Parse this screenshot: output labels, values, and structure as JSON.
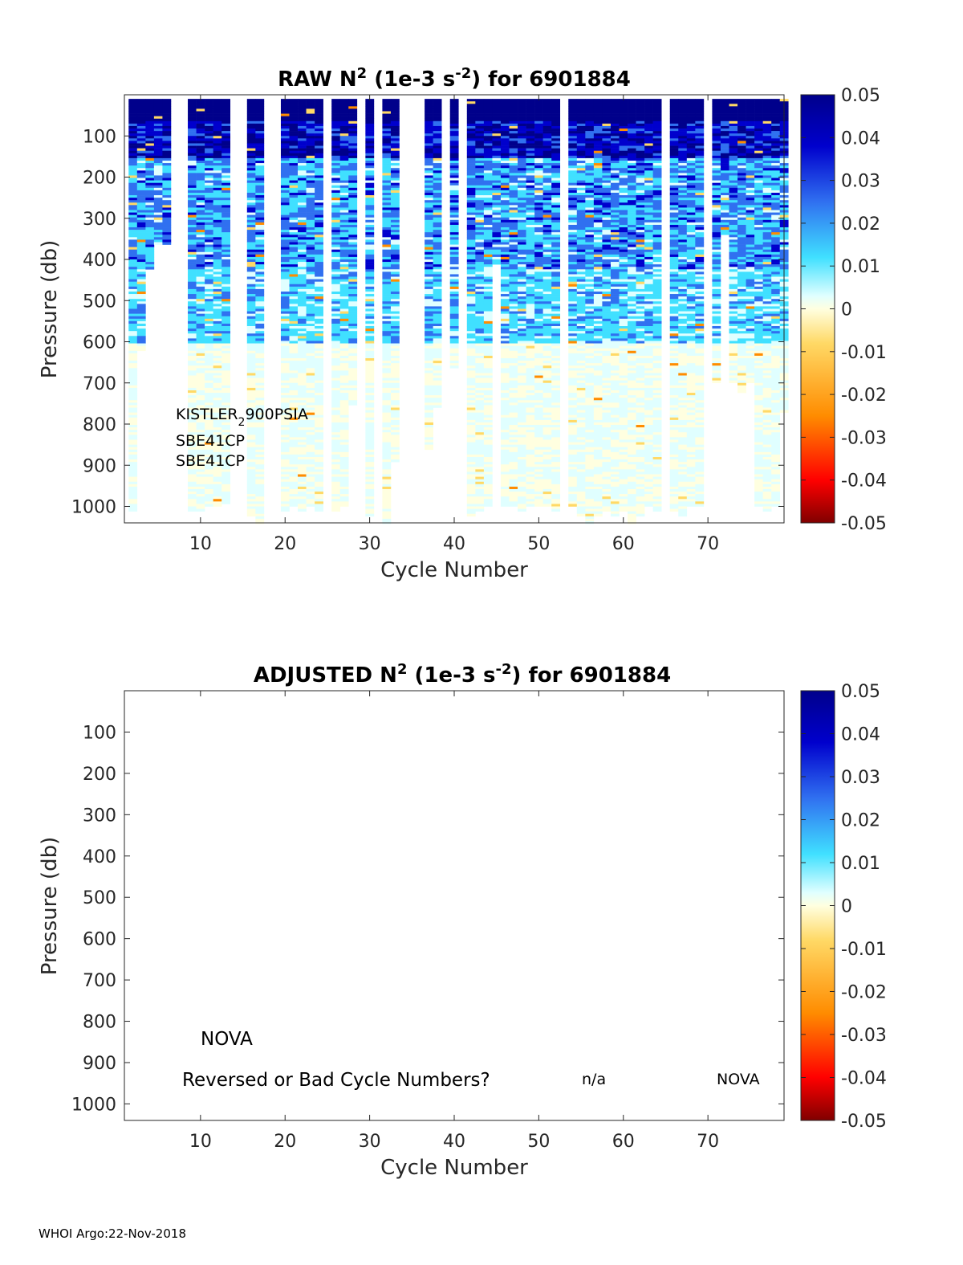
{
  "footer": "WHOI Argo:22-Nov-2018",
  "colors": {
    "colormap": [
      "#800000",
      "#ff0000",
      "#ff8c00",
      "#ffd966",
      "#ffffe0",
      "#e0ffff",
      "#40e0ff",
      "#3070f0",
      "#0000cd",
      "#00008b"
    ],
    "missing": "#ffffff"
  },
  "chart_data": [
    {
      "type": "heatmap",
      "title_pre": "RAW N",
      "title_sup1": "2",
      "title_mid": " (1e-3 s",
      "title_sup2": "-2",
      "title_post": ") for 6901884",
      "xlabel": "Cycle Number",
      "ylabel": "Pressure (db)",
      "xlim": [
        1,
        79
      ],
      "ylim": [
        1040,
        0
      ],
      "xticks": [
        "10",
        "20",
        "30",
        "40",
        "50",
        "60",
        "70"
      ],
      "yticks": [
        "100",
        "200",
        "300",
        "400",
        "500",
        "600",
        "700",
        "800",
        "900",
        "1000"
      ],
      "clim": [
        -0.05,
        0.05
      ],
      "colorbar_ticks": [
        "0.05",
        "0.04",
        "0.03",
        "0.02",
        "0.01",
        "0",
        "-0.01",
        "-0.02",
        "-0.03",
        "-0.04",
        "-0.05"
      ],
      "annotation": {
        "line1_a": "KISTLER",
        "line1_sub": "2",
        "line1_b": "900PSIA",
        "line2": "SBE41CP",
        "line3": "SBE41CP"
      },
      "missing_cycles": [
        7,
        8,
        14,
        15,
        18,
        19,
        25,
        29,
        31,
        34,
        35,
        36,
        39,
        41,
        53,
        65,
        70
      ],
      "profile_max_pressure": [
        [
          2,
          1010
        ],
        [
          3,
          620
        ],
        [
          4,
          420
        ],
        [
          5,
          360
        ],
        [
          6,
          360
        ],
        [
          9,
          1010
        ],
        [
          10,
          1010
        ],
        [
          11,
          1000
        ],
        [
          12,
          1000
        ],
        [
          13,
          990
        ],
        [
          16,
          1020
        ],
        [
          17,
          1040
        ],
        [
          20,
          1010
        ],
        [
          21,
          1000
        ],
        [
          22,
          1010
        ],
        [
          23,
          1000
        ],
        [
          24,
          1010
        ],
        [
          26,
          1010
        ],
        [
          27,
          1000
        ],
        [
          28,
          750
        ],
        [
          30,
          1020
        ],
        [
          32,
          1040
        ],
        [
          33,
          890
        ],
        [
          37,
          860
        ],
        [
          38,
          760
        ],
        [
          40,
          660
        ],
        [
          42,
          1020
        ],
        [
          43,
          1010
        ],
        [
          44,
          1000
        ],
        [
          45,
          410
        ],
        [
          46,
          1000
        ],
        [
          47,
          1000
        ],
        [
          48,
          1010
        ],
        [
          49,
          1000
        ],
        [
          50,
          1000
        ],
        [
          51,
          1000
        ],
        [
          52,
          1010
        ],
        [
          54,
          1000
        ],
        [
          55,
          1020
        ],
        [
          56,
          1040
        ],
        [
          57,
          1020
        ],
        [
          58,
          1010
        ],
        [
          59,
          1020
        ],
        [
          60,
          1010
        ],
        [
          61,
          1040
        ],
        [
          62,
          1020
        ],
        [
          63,
          1000
        ],
        [
          64,
          1010
        ],
        [
          66,
          1010
        ],
        [
          67,
          1020
        ],
        [
          68,
          1000
        ],
        [
          69,
          1000
        ],
        [
          71,
          700
        ],
        [
          72,
          340
        ],
        [
          73,
          700
        ],
        [
          74,
          720
        ],
        [
          75,
          700
        ],
        [
          76,
          1000
        ],
        [
          77,
          1010
        ],
        [
          78,
          1000
        ],
        [
          79,
          770
        ]
      ],
      "profile_style": "strong stratification (N2 > 0.04) in upper 50-150 db, 0.005-0.02 below, near 0 at depth"
    },
    {
      "type": "heatmap",
      "title_pre": "ADJUSTED N",
      "title_sup1": "2",
      "title_mid": " (1e-3 s",
      "title_sup2": "-2",
      "title_post": ") for 6901884",
      "xlabel": "Cycle Number",
      "ylabel": "Pressure (db)",
      "xlim": [
        1,
        79
      ],
      "ylim": [
        1040,
        0
      ],
      "xticks": [
        "10",
        "20",
        "30",
        "40",
        "50",
        "60",
        "70"
      ],
      "yticks": [
        "100",
        "200",
        "300",
        "400",
        "500",
        "600",
        "700",
        "800",
        "900",
        "1000"
      ],
      "clim": [
        -0.05,
        0.05
      ],
      "colorbar_ticks": [
        "0.05",
        "0.04",
        "0.03",
        "0.02",
        "0.01",
        "0",
        "-0.01",
        "-0.02",
        "-0.03",
        "-0.04",
        "-0.05"
      ],
      "annotations": {
        "nova": "NOVA",
        "reversed": "Reversed or Bad Cycle Numbers?",
        "na": "n/a",
        "nova2": "NOVA"
      },
      "data_present": false
    }
  ]
}
